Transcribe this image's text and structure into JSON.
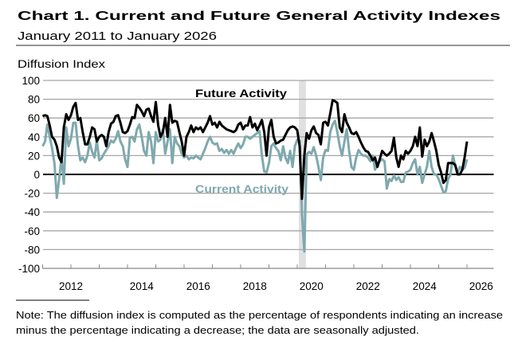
{
  "chart_data": {
    "type": "line",
    "title": "Chart 1. Current and Future General Activity Indexes",
    "subtitle": "January 2011 to January 2026",
    "ylabel": "Diffusion Index",
    "xlabel": "",
    "x_start": "2011-01",
    "x_end": "2026-01",
    "frequency": "monthly",
    "xlim": [
      2011,
      2027
    ],
    "ylim": [
      -100,
      100
    ],
    "yticks": [
      100,
      80,
      60,
      40,
      20,
      0,
      -20,
      -40,
      -60,
      -80,
      -100
    ],
    "xtick_labels": [
      "2012",
      "2014",
      "2016",
      "2018",
      "2020",
      "2022",
      "2024",
      "2026"
    ],
    "grid": "horizontal",
    "recession_shading": {
      "start": "2020-02",
      "end": "2020-04",
      "color": "#e0e0e0"
    },
    "series": [
      {
        "name": "Future Activity",
        "color": "#000000",
        "values": [
          62,
          63,
          62,
          52,
          40,
          37,
          30,
          18,
          13,
          50,
          64,
          58,
          63,
          72,
          76,
          58,
          60,
          45,
          32,
          32,
          40,
          50,
          48,
          35,
          40,
          42,
          40,
          30,
          45,
          54,
          56,
          62,
          63,
          55,
          45,
          44,
          46,
          53,
          61,
          60,
          74,
          71,
          67,
          62,
          69,
          70,
          62,
          56,
          77,
          52,
          40,
          45,
          60,
          40,
          74,
          55,
          57,
          56,
          45,
          35,
          20,
          40,
          45,
          52,
          45,
          50,
          48,
          50,
          45,
          50,
          55,
          62,
          53,
          55,
          50,
          56,
          52,
          50,
          48,
          47,
          46,
          45,
          47,
          53,
          55,
          48,
          52,
          52,
          61,
          50,
          54,
          47,
          52,
          58,
          45,
          20,
          50,
          58,
          40,
          33,
          34,
          36,
          37,
          42,
          47,
          50,
          51,
          50,
          47,
          30,
          -26,
          20,
          44,
          38,
          47,
          51,
          44,
          42,
          32,
          55,
          56,
          52,
          65,
          79,
          78,
          76,
          50,
          45,
          64,
          55,
          50,
          44,
          43,
          45,
          40,
          34,
          29,
          25,
          24,
          20,
          15,
          18,
          8,
          16,
          25,
          22,
          20,
          22,
          25,
          39,
          18,
          8,
          20,
          16,
          25,
          22,
          25,
          30,
          40,
          30,
          50,
          19,
          37,
          30,
          35,
          44,
          35,
          25,
          10,
          2,
          -9,
          -6,
          12,
          12,
          12,
          10,
          0,
          0,
          5,
          18,
          35
        ]
      },
      {
        "name": "Current Activity",
        "color": "#7fa9ae",
        "values": [
          30,
          35,
          53,
          40,
          28,
          12,
          -25,
          -5,
          18,
          -10,
          50,
          30,
          38,
          55,
          55,
          30,
          15,
          18,
          13,
          20,
          34,
          24,
          18,
          36,
          15,
          17,
          22,
          26,
          30,
          36,
          34,
          38,
          46,
          35,
          30,
          16,
          8,
          39,
          40,
          35,
          48,
          53,
          40,
          25,
          20,
          45,
          35,
          12,
          45,
          35,
          37,
          48,
          22,
          35,
          48,
          12,
          40,
          33,
          30,
          22,
          18,
          20,
          16,
          18,
          17,
          20,
          18,
          16,
          22,
          28,
          35,
          40,
          34,
          32,
          33,
          25,
          27,
          23,
          26,
          22,
          26,
          22,
          28,
          33,
          28,
          32,
          40,
          40,
          38,
          40,
          42,
          44,
          46,
          20,
          3,
          2,
          12,
          30,
          33,
          28,
          25,
          15,
          30,
          18,
          12,
          25,
          8,
          30,
          37,
          36,
          -42,
          -82,
          21,
          24,
          22,
          29,
          20,
          8,
          -6,
          18,
          26,
          25,
          45,
          53,
          57,
          45,
          30,
          20,
          35,
          48,
          25,
          8,
          5,
          18,
          26,
          22,
          20,
          20,
          18,
          14,
          20,
          5,
          10,
          14,
          16,
          14,
          -15,
          -5,
          -7,
          -1,
          -6,
          -3,
          -8,
          -8,
          2,
          3,
          5,
          12,
          16,
          0,
          8,
          -9,
          0,
          8,
          25,
          8,
          0,
          0,
          -5,
          -12,
          -19,
          -18,
          -5,
          0,
          20,
          10,
          2,
          8,
          5,
          7,
          16
        ]
      }
    ]
  },
  "note": {
    "line1": "Note: The diffusion index is computed as the percentage of respondents indicating an increase",
    "line2": "minus the percentage indicating a decrease; the data are seasonally adjusted."
  }
}
